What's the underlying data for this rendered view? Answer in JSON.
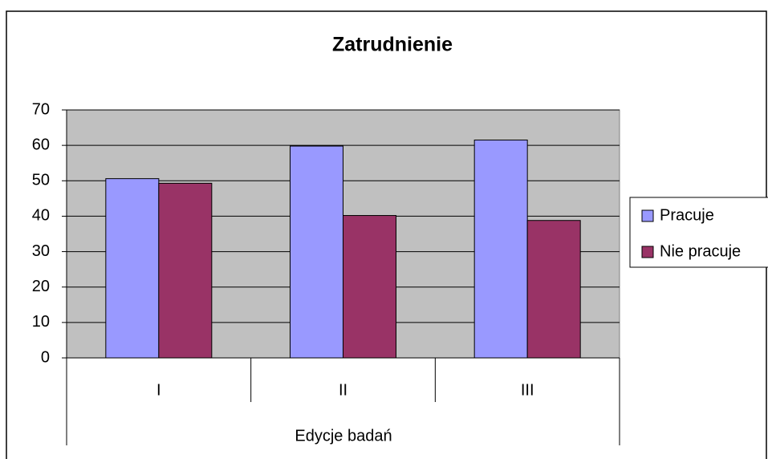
{
  "chart_data": {
    "type": "bar",
    "title": "Zatrudnienie",
    "xlabel": "Edycje badań",
    "categories": [
      "I",
      "II",
      "III"
    ],
    "series": [
      {
        "name": "Pracuje",
        "color": "#9999ff",
        "values": [
          50.6,
          59.8,
          61.5
        ]
      },
      {
        "name": "Nie pracuje",
        "color": "#993366",
        "values": [
          49.3,
          40.2,
          38.8
        ]
      }
    ],
    "ylim": [
      0,
      70
    ],
    "yticks": [
      0,
      10,
      20,
      30,
      40,
      50,
      60,
      70
    ],
    "grid": true,
    "legend": "right"
  }
}
